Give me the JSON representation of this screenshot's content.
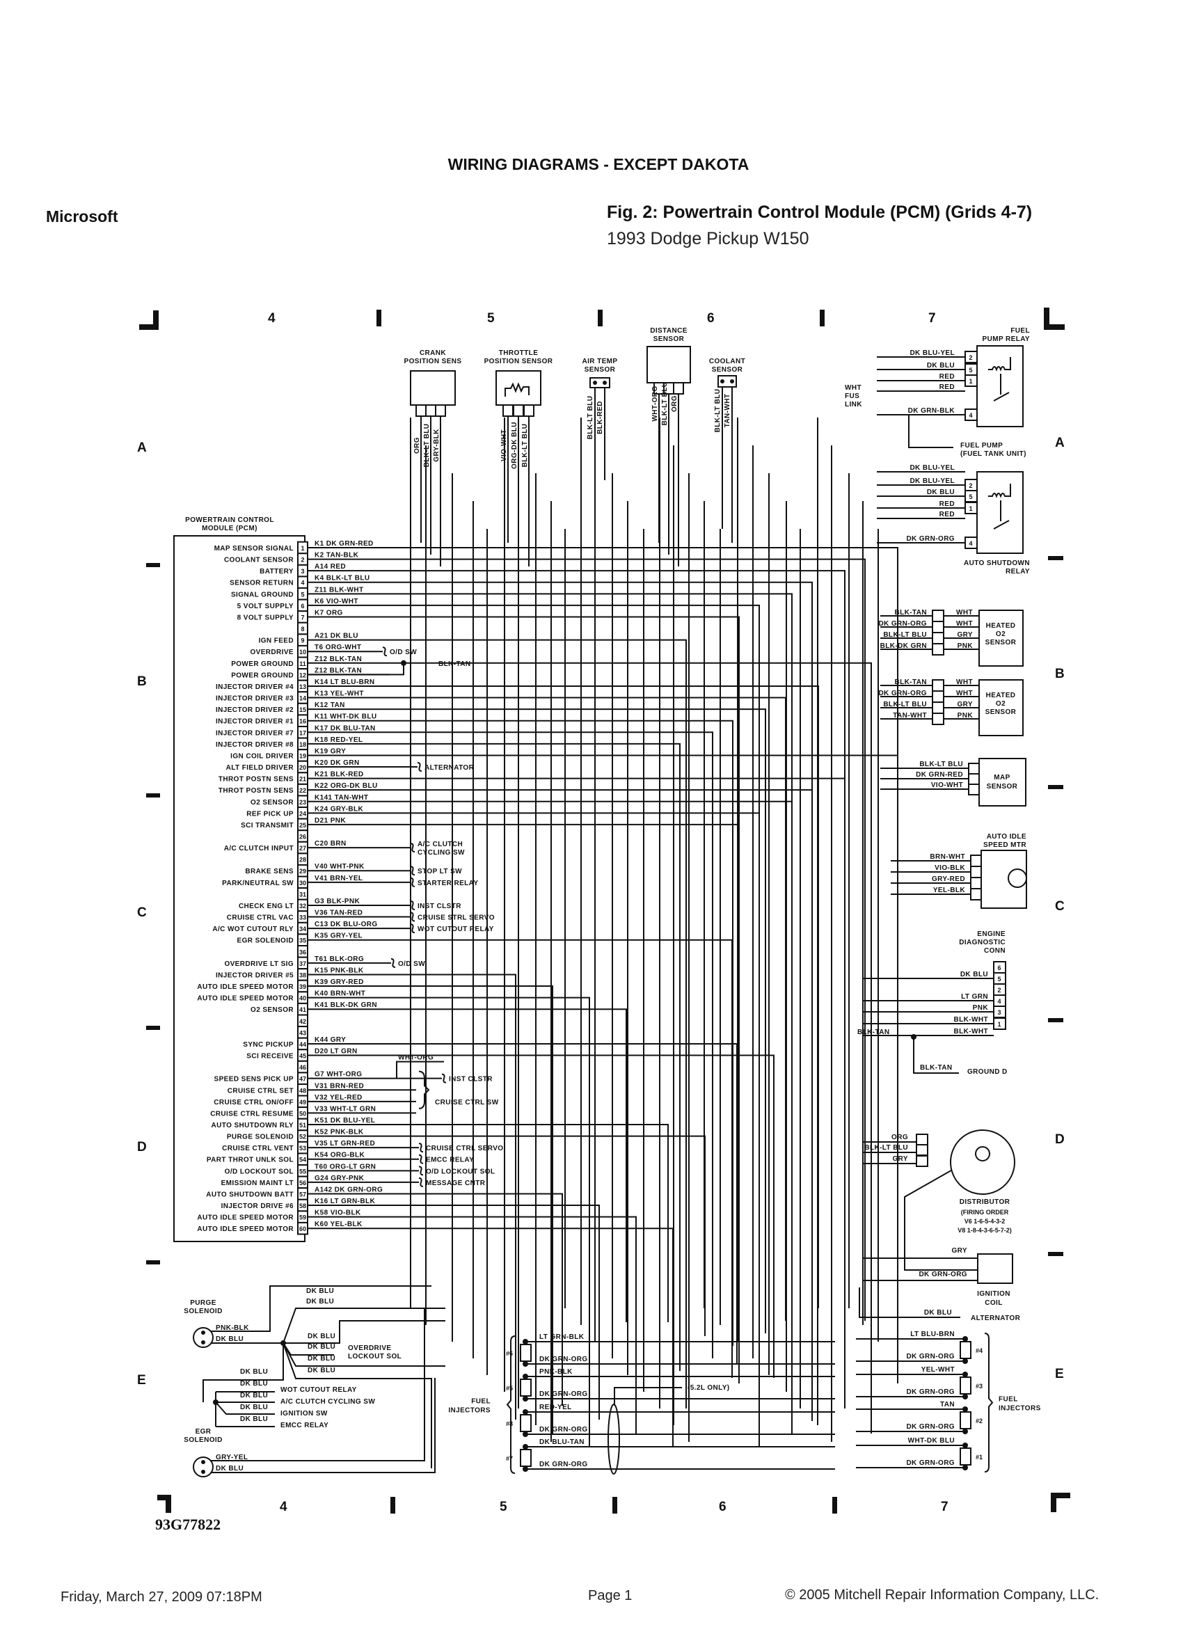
{
  "header": {
    "section_title": "WIRING DIAGRAMS - EXCEPT DAKOTA",
    "publisher": "Microsoft",
    "figure_title": "Fig. 2: Powertrain Control Module (PCM) (Grids 4-7)",
    "vehicle": "1993 Dodge Pickup W150"
  },
  "grid": {
    "columns": [
      "4",
      "5",
      "6",
      "7"
    ],
    "rows": [
      "A",
      "B",
      "C",
      "D",
      "E"
    ]
  },
  "pcm": {
    "title_line1": "POWERTRAIN CONTROL",
    "title_line2": "MODULE (PCM)",
    "pins": [
      {
        "n": "1",
        "func": "MAP SENSOR SIGNAL",
        "wire": "K1 DK GRN-RED"
      },
      {
        "n": "2",
        "func": "COOLANT SENSOR",
        "wire": "K2 TAN-BLK"
      },
      {
        "n": "3",
        "func": "BATTERY",
        "wire": "A14 RED"
      },
      {
        "n": "4",
        "func": "SENSOR RETURN",
        "wire": "K4 BLK-LT BLU"
      },
      {
        "n": "5",
        "func": "SIGNAL GROUND",
        "wire": "Z11 BLK-WHT"
      },
      {
        "n": "6",
        "func": "5 VOLT SUPPLY",
        "wire": "K6 VIO-WHT"
      },
      {
        "n": "7",
        "func": "8 VOLT SUPPLY",
        "wire": "K7 ORG"
      },
      {
        "n": "8",
        "func": "",
        "wire": ""
      },
      {
        "n": "9",
        "func": "IGN FEED",
        "wire": "A21 DK BLU"
      },
      {
        "n": "10",
        "func": "OVERDRIVE",
        "wire": "T6 ORG-WHT",
        "dest": "O/D SW"
      },
      {
        "n": "11",
        "func": "POWER GROUND",
        "wire": "Z12 BLK-TAN",
        "branch": "BLK-TAN"
      },
      {
        "n": "12",
        "func": "POWER GROUND",
        "wire": "Z12 BLK-TAN"
      },
      {
        "n": "13",
        "func": "INJECTOR DRIVER #4",
        "wire": "K14 LT BLU-BRN"
      },
      {
        "n": "14",
        "func": "INJECTOR DRIVER #3",
        "wire": "K13 YEL-WHT"
      },
      {
        "n": "15",
        "func": "INJECTOR DRIVER #2",
        "wire": "K12 TAN"
      },
      {
        "n": "16",
        "func": "INJECTOR DRIVER #1",
        "wire": "K11 WHT-DK BLU"
      },
      {
        "n": "17",
        "func": "INJECTOR DRIVER #7",
        "wire": "K17 DK BLU-TAN"
      },
      {
        "n": "18",
        "func": "INJECTOR DRIVER #8",
        "wire": "K18 RED-YEL"
      },
      {
        "n": "19",
        "func": "IGN COIL DRIVER",
        "wire": "K19 GRY"
      },
      {
        "n": "20",
        "func": "ALT FIELD DRIVER",
        "wire": "K20 DK GRN",
        "dest": "ALTERNATOR"
      },
      {
        "n": "21",
        "func": "THROT POSTN SENS",
        "wire": "K21 BLK-RED"
      },
      {
        "n": "22",
        "func": "THROT POSTN SENS",
        "wire": "K22 ORG-DK BLU"
      },
      {
        "n": "23",
        "func": "O2 SENSOR",
        "wire": "K141 TAN-WHT"
      },
      {
        "n": "24",
        "func": "REF PICK UP",
        "wire": "K24 GRY-BLK"
      },
      {
        "n": "25",
        "func": "SCI TRANSMIT",
        "wire": "D21 PNK"
      },
      {
        "n": "26",
        "func": "",
        "wire": ""
      },
      {
        "n": "27",
        "func": "A/C CLUTCH INPUT",
        "wire": "C20 BRN",
        "dest": "A/C CLUTCH",
        "dest2": "CYCLING SW"
      },
      {
        "n": "28",
        "func": "",
        "wire": ""
      },
      {
        "n": "29",
        "func": "BRAKE SENS",
        "wire": "V40 WHT-PNK",
        "dest": "STOP LT SW"
      },
      {
        "n": "30",
        "func": "PARK/NEUTRAL SW",
        "wire": "V41 BRN-YEL",
        "dest": "STARTER RELAY"
      },
      {
        "n": "31",
        "func": "",
        "wire": ""
      },
      {
        "n": "32",
        "func": "CHECK ENG LT",
        "wire": "G3 BLK-PNK",
        "dest": "INST CLSTR"
      },
      {
        "n": "33",
        "func": "CRUISE CTRL VAC",
        "wire": "V36 TAN-RED",
        "dest": "CRUISE STRL SERVO"
      },
      {
        "n": "34",
        "func": "A/C WOT CUTOUT RLY",
        "wire": "C13 DK BLU-ORG",
        "dest": "WOT CUTOUT RELAY"
      },
      {
        "n": "35",
        "func": "EGR SOLENOID",
        "wire": "K35 GRY-YEL"
      },
      {
        "n": "36",
        "func": "",
        "wire": ""
      },
      {
        "n": "37",
        "func": "OVERDRIVE LT SIG",
        "wire": "T61 BLK-ORG",
        "dest": "O/D SW"
      },
      {
        "n": "38",
        "func": "INJECTOR DRIVER #5",
        "wire": "K15 PNK-BLK"
      },
      {
        "n": "39",
        "func": "AUTO IDLE SPEED MOTOR",
        "wire": "K39 GRY-RED"
      },
      {
        "n": "40",
        "func": "AUTO IDLE SPEED MOTOR",
        "wire": "K40 BRN-WHT"
      },
      {
        "n": "41",
        "func": "O2 SENSOR",
        "wire": "K41 BLK-DK GRN"
      },
      {
        "n": "42",
        "func": "",
        "wire": ""
      },
      {
        "n": "43",
        "func": "",
        "wire": ""
      },
      {
        "n": "44",
        "func": "SYNC PICKUP",
        "wire": "K44 GRY"
      },
      {
        "n": "45",
        "func": "SCI RECEIVE",
        "wire": "D20 LT GRN"
      },
      {
        "n": "46",
        "func": "",
        "wire": ""
      },
      {
        "n": "47",
        "func": "SPEED SENS PICK UP",
        "wire": "G7 WHT-ORG",
        "branch": "WHT-ORG",
        "dest": "INST CLSTR"
      },
      {
        "n": "48",
        "func": "CRUISE CTRL SET",
        "wire": "V31 BRN-RED"
      },
      {
        "n": "49",
        "func": "CRUISE CTRL ON/OFF",
        "wire": "V32 YEL-RED"
      },
      {
        "n": "50",
        "func": "CRUISE CTRL RESUME",
        "wire": "V33 WHT-LT GRN"
      },
      {
        "n": "51",
        "func": "AUTO SHUTDOWN RLY",
        "wire": "K51 DK BLU-YEL"
      },
      {
        "n": "52",
        "func": "PURGE SOLENOID",
        "wire": "K52 PNK-BLK"
      },
      {
        "n": "53",
        "func": "CRUISE CTRL VENT",
        "wire": "V35 LT GRN-RED",
        "dest": "CRUISE CTRL SERVO"
      },
      {
        "n": "54",
        "func": "PART THROT UNLK SOL",
        "wire": "K54 ORG-BLK",
        "dest": "EMCC RELAY"
      },
      {
        "n": "55",
        "func": "O/D LOCKOUT SOL",
        "wire": "T60 ORG-LT GRN",
        "dest": "O/D LOCKOUT SOL"
      },
      {
        "n": "56",
        "func": "EMISSION MAINT LT",
        "wire": "G24 GRY-PNK",
        "dest": "MESSAGE CNTR"
      },
      {
        "n": "57",
        "func": "AUTO SHUTDOWN BATT",
        "wire": "A142 DK GRN-ORG"
      },
      {
        "n": "58",
        "func": "INJECTOR DRIVE #6",
        "wire": "K16 LT GRN-BLK"
      },
      {
        "n": "59",
        "func": "AUTO IDLE SPEED MOTOR",
        "wire": "K58 VIO-BLK"
      },
      {
        "n": "60",
        "func": "AUTO IDLE SPEED MOTOR",
        "wire": "K60 YEL-BLK"
      }
    ],
    "cruise_switch_group": "CRUISE CTRL SW"
  },
  "sensors": {
    "crank": {
      "title1": "CRANK",
      "title2": "POSITION SENS",
      "wires": [
        "ORG",
        "BLK-LT BLU",
        "GRY-BLK"
      ]
    },
    "throttle": {
      "title1": "THROTTLE",
      "title2": "POSITION SENSOR",
      "wires": [
        "VIO-WHT",
        "ORG-DK BLU",
        "BLK-LT BLU"
      ]
    },
    "air_temp": {
      "title1": "AIR TEMP",
      "title2": "SENSOR",
      "wires": [
        "BLK-LT BLU",
        "BLK-RED"
      ]
    },
    "distance": {
      "title1": "DISTANCE",
      "title2": "SENSOR",
      "wires": [
        "WHT-ORG",
        "BLK-LT BLU",
        "ORG"
      ]
    },
    "coolant": {
      "title1": "COOLANT",
      "title2": "SENSOR",
      "wires": [
        "BLK-LT BLU",
        "TAN-WHT"
      ]
    }
  },
  "fuel_pump_relay": {
    "title1": "FUEL",
    "title2": "PUMP RELAY",
    "wires": [
      "DK BLU-YEL",
      "DK BLU",
      "RED",
      "RED",
      "DK GRN-BLK"
    ],
    "pins": [
      "2",
      "5",
      "1",
      "4"
    ],
    "fusible_link": [
      "WHT",
      "FUS",
      "LINK"
    ],
    "fuel_pump": [
      "FUEL PUMP",
      "(FUEL TANK UNIT)"
    ]
  },
  "asd_relay": {
    "title1": "AUTO SHUTDOWN",
    "title2": "RELAY",
    "wires": [
      "DK BLU-YEL",
      "DK BLU-YEL",
      "DK BLU",
      "RED",
      "RED",
      "DK GRN-ORG"
    ],
    "pins": [
      "2",
      "5",
      "1",
      "4"
    ]
  },
  "o2_sensor_1": {
    "title": [
      "HEATED",
      "O2",
      "SENSOR"
    ],
    "wires_in": [
      "BLK-TAN",
      "DK GRN-ORG",
      "BLK-LT BLU",
      "BLK-DK GRN"
    ],
    "wires_out": [
      "WHT",
      "WHT",
      "GRY",
      "PNK"
    ]
  },
  "o2_sensor_2": {
    "title": [
      "HEATED",
      "O2",
      "SENSOR"
    ],
    "wires_in": [
      "BLK-TAN",
      "DK GRN-ORG",
      "BLK-LT BLU",
      "TAN-WHT"
    ],
    "wires_out": [
      "WHT",
      "WHT",
      "GRY",
      "PNK"
    ]
  },
  "map_sensor": {
    "title": [
      "MAP",
      "SENSOR"
    ],
    "wires": [
      "BLK-LT BLU",
      "DK GRN-RED",
      "VIO-WHT"
    ]
  },
  "ais_motor": {
    "title": [
      "AUTO IDLE",
      "SPEED MTR"
    ],
    "wires": [
      "BRN-WHT",
      "VIO-BLK",
      "GRY-RED",
      "YEL-BLK"
    ]
  },
  "diag_conn": {
    "title": [
      "ENGINE",
      "DIAGNOSTIC",
      "CONN"
    ],
    "pins": [
      "6",
      "5",
      "2",
      "4",
      "3",
      "1"
    ],
    "wires": [
      "DK BLU",
      "LT GRN",
      "PNK",
      "BLK-WHT",
      "BLK-WHT"
    ],
    "ground_wire": "BLK-TAN",
    "ground_wire2": "BLK-TAN",
    "ground_label": "GROUND D"
  },
  "distributor": {
    "wires": [
      "ORG",
      "BLK-LT BLU",
      "GRY"
    ],
    "title": "DISTRIBUTOR",
    "firing_order": [
      "(FIRING ORDER",
      "V6 1-6-5-4-3-2",
      "V8 1-8-4-3-6-5-7-2)"
    ]
  },
  "ignition_coil": {
    "title": [
      "IGNITION",
      "COIL"
    ],
    "wires": [
      "GRY",
      "DK GRN-ORG"
    ],
    "alt_wire": "DK BLU",
    "alt_label": "ALTERNATOR"
  },
  "injectors_right": {
    "label": [
      "FUEL",
      "INJECTORS"
    ],
    "items": [
      {
        "id": "#4",
        "a": "LT BLU-BRN",
        "b": "DK GRN-ORG"
      },
      {
        "id": "#3",
        "a": "YEL-WHT",
        "b": "DK GRN-ORG"
      },
      {
        "id": "#2",
        "a": "TAN",
        "b": "DK GRN-ORG"
      },
      {
        "id": "#1",
        "a": "WHT-DK BLU",
        "b": "DK GRN-ORG"
      }
    ]
  },
  "injectors_left": {
    "label": [
      "FUEL",
      "INJECTORS"
    ],
    "note": "(5.2L ONLY)",
    "items": [
      {
        "id": "#6",
        "a": "LT GRN-BLK",
        "b": "DK GRN-ORG"
      },
      {
        "id": "#5",
        "a": "PNK-BLK",
        "b": "DK GRN-ORG"
      },
      {
        "id": "#8",
        "a": "RED-YEL",
        "b": "DK GRN-ORG"
      },
      {
        "id": "#7",
        "a": "DK BLU-TAN",
        "b": "DK GRN-ORG"
      }
    ]
  },
  "purge_solenoid": {
    "title": [
      "PURGE",
      "SOLENOID"
    ],
    "wires": [
      "PNK-BLK",
      "DK BLU"
    ]
  },
  "egr_solenoid": {
    "title": [
      "EGR",
      "SOLENOID"
    ],
    "wires": [
      "GRY-YEL",
      "DK BLU"
    ]
  },
  "dk_blu_splice": {
    "wire": "DK BLU",
    "destinations": [
      "OVERDRIVE",
      "LOCKOUT SOL",
      "WOT CUTOUT RELAY",
      "A/C CLUTCH CYCLING SW",
      "IGNITION SW",
      "EMCC RELAY"
    ]
  },
  "figure_id": "93G77822",
  "footer": {
    "date": "Friday, March 27, 2009  07:18PM",
    "page": "Page 1",
    "copyright": "© 2005 Mitchell Repair Information Company, LLC."
  }
}
